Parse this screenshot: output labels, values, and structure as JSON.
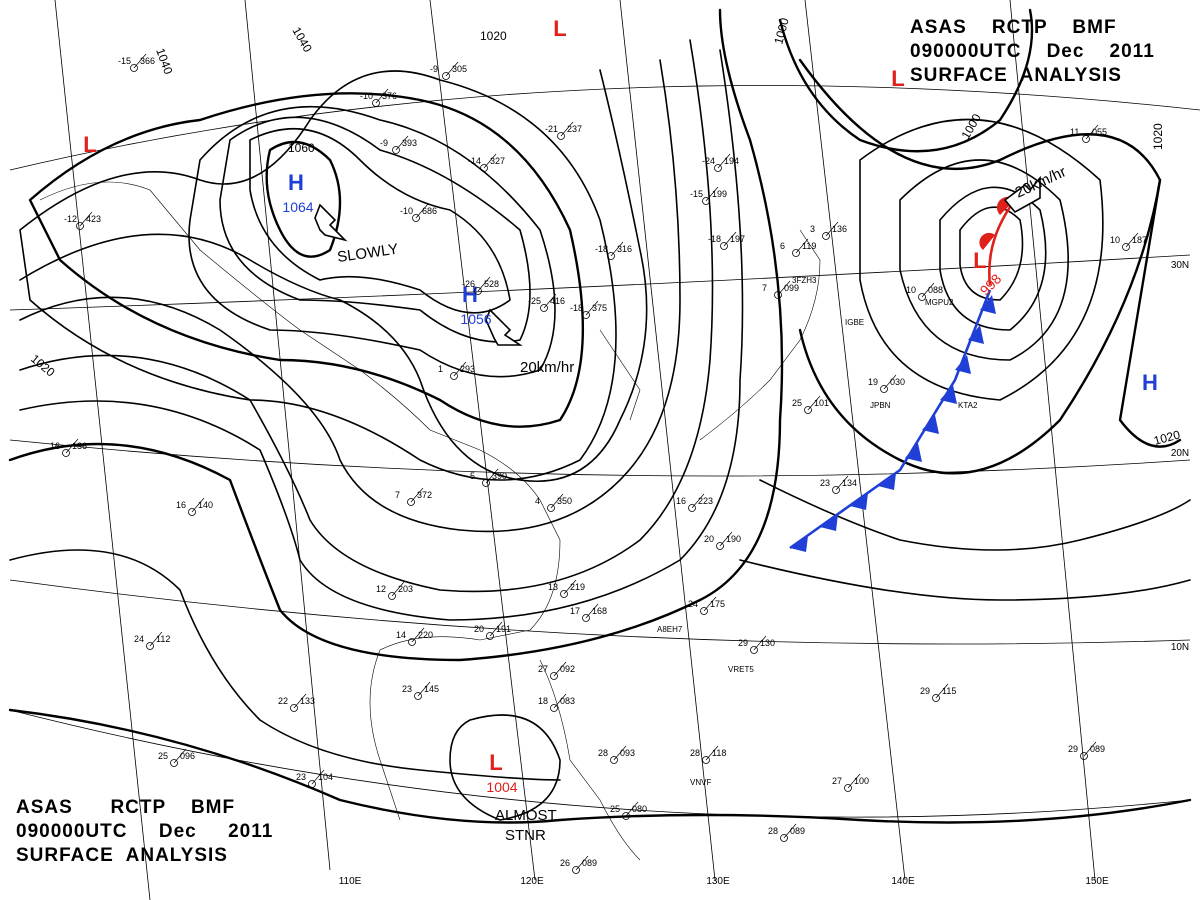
{
  "titles": {
    "top": {
      "line1": "ASAS    RCTP    BMF",
      "line2": "090000UTC    Dec    2011",
      "line3": "SURFACE  ANALYSIS"
    },
    "bottom": {
      "line1": "ASAS      RCTP    BMF",
      "line2": "090000UTC     Dec     2011",
      "line3": "SURFACE  ANALYSIS"
    }
  },
  "pressure_centers": [
    {
      "kind": "H",
      "value": "1064",
      "color": "#1f3fd6"
    },
    {
      "kind": "H",
      "value": "1056",
      "color": "#1f3fd6"
    },
    {
      "kind": "L",
      "value": "998",
      "color": "#e0201a"
    },
    {
      "kind": "L",
      "value": "1004",
      "color": "#e0201a"
    },
    {
      "kind": "L",
      "value": "",
      "color": "#e0201a"
    },
    {
      "kind": "L",
      "value": "",
      "color": "#e0201a"
    },
    {
      "kind": "L",
      "value": "",
      "color": "#e0201a"
    },
    {
      "kind": "H",
      "value": "",
      "color": "#1f3fd6"
    }
  ],
  "movements": [
    {
      "text": "SLOWLY"
    },
    {
      "text": "20km/hr"
    },
    {
      "text": "20km/hr"
    },
    {
      "text": "ALMOST"
    },
    {
      "text": "STNR"
    }
  ],
  "isobar_labels": [
    "1040",
    "1040",
    "1020",
    "1060",
    "1000",
    "1000",
    "1020",
    "1020",
    "1020",
    "1004"
  ],
  "longitude_labels": [
    "110E",
    "120E",
    "130E",
    "140E",
    "150E"
  ],
  "latitude_labels": [
    "30N",
    "20N",
    "10N"
  ],
  "stations": [
    {
      "temp": "-15",
      "press": "366"
    },
    {
      "temp": "-10",
      "press": "376"
    },
    {
      "temp": "-9",
      "press": "305"
    },
    {
      "temp": "-9",
      "press": "393"
    },
    {
      "temp": "-14",
      "press": "327"
    },
    {
      "temp": "-21",
      "press": "237"
    },
    {
      "temp": "-10",
      "press": "686"
    },
    {
      "temp": "-26",
      "press": "528"
    },
    {
      "temp": "-18",
      "press": "316"
    },
    {
      "temp": "-18",
      "press": "375"
    },
    {
      "temp": "-25",
      "press": "416"
    },
    {
      "temp": "-12",
      "press": "423"
    },
    {
      "temp": "-24",
      "press": "194"
    },
    {
      "temp": "-15",
      "press": "199"
    },
    {
      "temp": "-18",
      "press": "197"
    },
    {
      "temp": "1",
      "press": "293"
    },
    {
      "temp": "5",
      "press": "390"
    },
    {
      "temp": "4",
      "press": "350"
    },
    {
      "temp": "7",
      "press": "372"
    },
    {
      "temp": "13",
      "press": "219"
    },
    {
      "temp": "16",
      "press": "223"
    },
    {
      "temp": "20",
      "press": "190"
    },
    {
      "temp": "12",
      "press": "203"
    },
    {
      "temp": "14",
      "press": "220"
    },
    {
      "temp": "20",
      "press": "191"
    },
    {
      "temp": "17",
      "press": "168"
    },
    {
      "temp": "24",
      "press": "175"
    },
    {
      "temp": "16",
      "press": "136"
    },
    {
      "temp": "16",
      "press": "140"
    },
    {
      "temp": "24",
      "press": "112"
    },
    {
      "temp": "22",
      "press": "133"
    },
    {
      "temp": "23",
      "press": "145"
    },
    {
      "temp": "25",
      "press": "096"
    },
    {
      "temp": "23",
      "press": "104"
    },
    {
      "temp": "27",
      "press": "092"
    },
    {
      "temp": "18",
      "press": "083"
    },
    {
      "temp": "28",
      "press": "093"
    },
    {
      "temp": "28",
      "press": "118"
    },
    {
      "temp": "29",
      "press": "130"
    },
    {
      "temp": "29",
      "press": "115"
    },
    {
      "temp": "27",
      "press": "100"
    },
    {
      "temp": "29",
      "press": "089"
    },
    {
      "temp": "28",
      "press": "089"
    },
    {
      "temp": "26",
      "press": "089"
    },
    {
      "temp": "25",
      "press": "080"
    },
    {
      "temp": "23",
      "press": "134"
    },
    {
      "temp": "25",
      "press": "101"
    },
    {
      "temp": "19",
      "press": "030"
    },
    {
      "temp": "10",
      "press": "088"
    },
    {
      "temp": "7",
      "press": "099"
    },
    {
      "temp": "10",
      "press": "187"
    },
    {
      "temp": "11",
      "press": "055"
    },
    {
      "temp": "6",
      "press": "119"
    },
    {
      "temp": "3",
      "press": "136"
    }
  ],
  "ship_callsigns": [
    "3FZH3",
    "IGBE",
    "MGPU2",
    "JPBN",
    "A8EH7",
    "VRET5",
    "VNVF",
    "KTA2"
  ],
  "colors": {
    "isobar": "#000000",
    "front": "#1f3fd6",
    "warm": "#e0201a",
    "grid": "#000000"
  }
}
